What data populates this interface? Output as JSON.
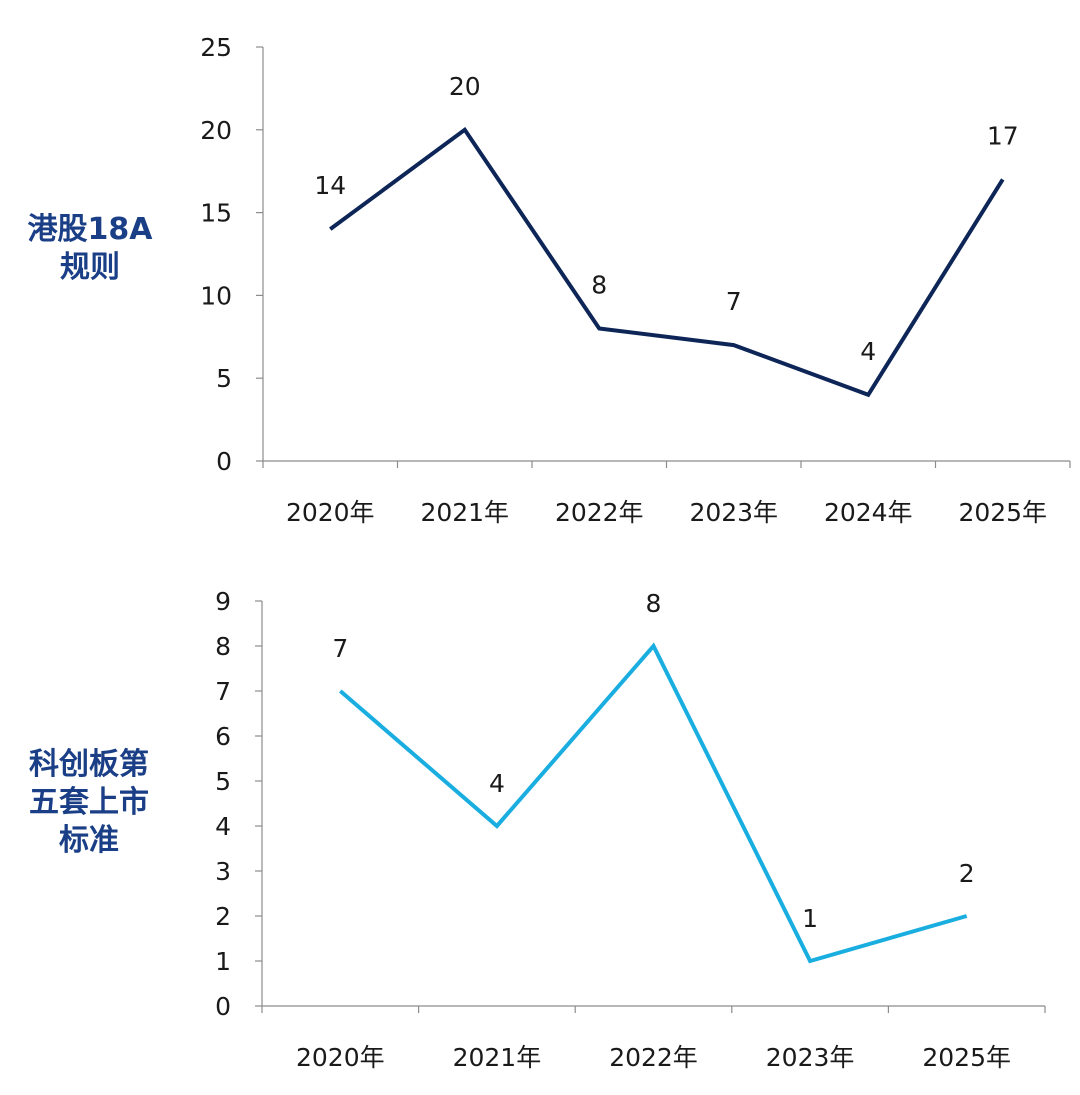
{
  "labels": {
    "chart1": [
      "港股18A",
      "规则"
    ],
    "chart2": [
      "科创板第",
      "五套上市",
      "标准"
    ]
  },
  "chart_data": [
    {
      "type": "line",
      "title": "港股18A 规则",
      "categories": [
        "2020年",
        "2021年",
        "2022年",
        "2023年",
        "2024年",
        "2025年"
      ],
      "values": [
        14,
        20,
        8,
        7,
        4,
        17
      ],
      "yticks": [
        0,
        5,
        10,
        15,
        20,
        25
      ],
      "ylim": [
        0,
        25
      ],
      "color": "#0d2657",
      "grid": false
    },
    {
      "type": "line",
      "title": "科创板第五套上市标准",
      "categories": [
        "2020年",
        "2021年",
        "2022年",
        "2023年",
        "2025年"
      ],
      "values": [
        7,
        4,
        8,
        1,
        2
      ],
      "yticks": [
        0,
        1,
        2,
        3,
        4,
        5,
        6,
        7,
        8,
        9
      ],
      "ylim": [
        0,
        9
      ],
      "color": "#1aaee0",
      "grid": false
    }
  ]
}
